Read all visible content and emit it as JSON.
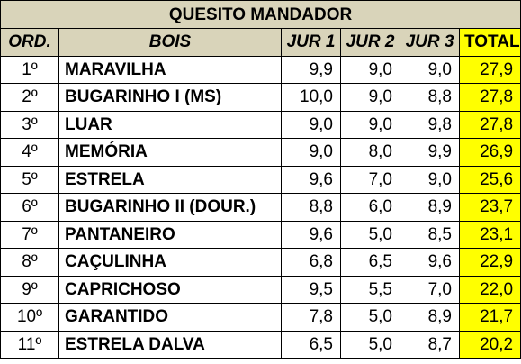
{
  "title": "QUESITO MANDADOR",
  "headers": {
    "ord": "ORD.",
    "bois": "BOIS",
    "jur1": "JUR 1",
    "jur2": "JUR 2",
    "jur3": "JUR 3",
    "total": "TOTAL"
  },
  "rows": [
    {
      "ord": "1º",
      "bois": "MARAVILHA",
      "jur1": "9,9",
      "jur2": "9,0",
      "jur3": "9,0",
      "total": "27,9"
    },
    {
      "ord": "2º",
      "bois": "BUGARINHO I (MS)",
      "jur1": "10,0",
      "jur2": "9,0",
      "jur3": "8,8",
      "total": "27,8"
    },
    {
      "ord": "3º",
      "bois": "LUAR",
      "jur1": "9,0",
      "jur2": "9,0",
      "jur3": "9,8",
      "total": "27,8"
    },
    {
      "ord": "4º",
      "bois": "MEMÓRIA",
      "jur1": "9,0",
      "jur2": "8,0",
      "jur3": "9,9",
      "total": "26,9"
    },
    {
      "ord": "5º",
      "bois": "ESTRELA",
      "jur1": "9,6",
      "jur2": "7,0",
      "jur3": "9,0",
      "total": "25,6"
    },
    {
      "ord": "6º",
      "bois": "BUGARINHO II (DOUR.)",
      "jur1": "8,8",
      "jur2": "6,0",
      "jur3": "8,9",
      "total": "23,7"
    },
    {
      "ord": "7º",
      "bois": "PANTANEIRO",
      "jur1": "9,6",
      "jur2": "5,0",
      "jur3": "8,5",
      "total": "23,1"
    },
    {
      "ord": "8º",
      "bois": "CAÇULINHA",
      "jur1": "6,8",
      "jur2": "6,5",
      "jur3": "9,6",
      "total": "22,9"
    },
    {
      "ord": "9º",
      "bois": "CAPRICHOSO",
      "jur1": "9,5",
      "jur2": "5,5",
      "jur3": "7,0",
      "total": "22,0"
    },
    {
      "ord": "10º",
      "bois": "GARANTIDO",
      "jur1": "7,8",
      "jur2": "5,0",
      "jur3": "8,9",
      "total": "21,7"
    },
    {
      "ord": "11º",
      "bois": "ESTRELA DALVA",
      "jur1": "6,5",
      "jur2": "5,0",
      "jur3": "8,7",
      "total": "20,2"
    }
  ],
  "colors": {
    "header_bg": "#d9d4ba",
    "total_bg": "#ffff00"
  }
}
